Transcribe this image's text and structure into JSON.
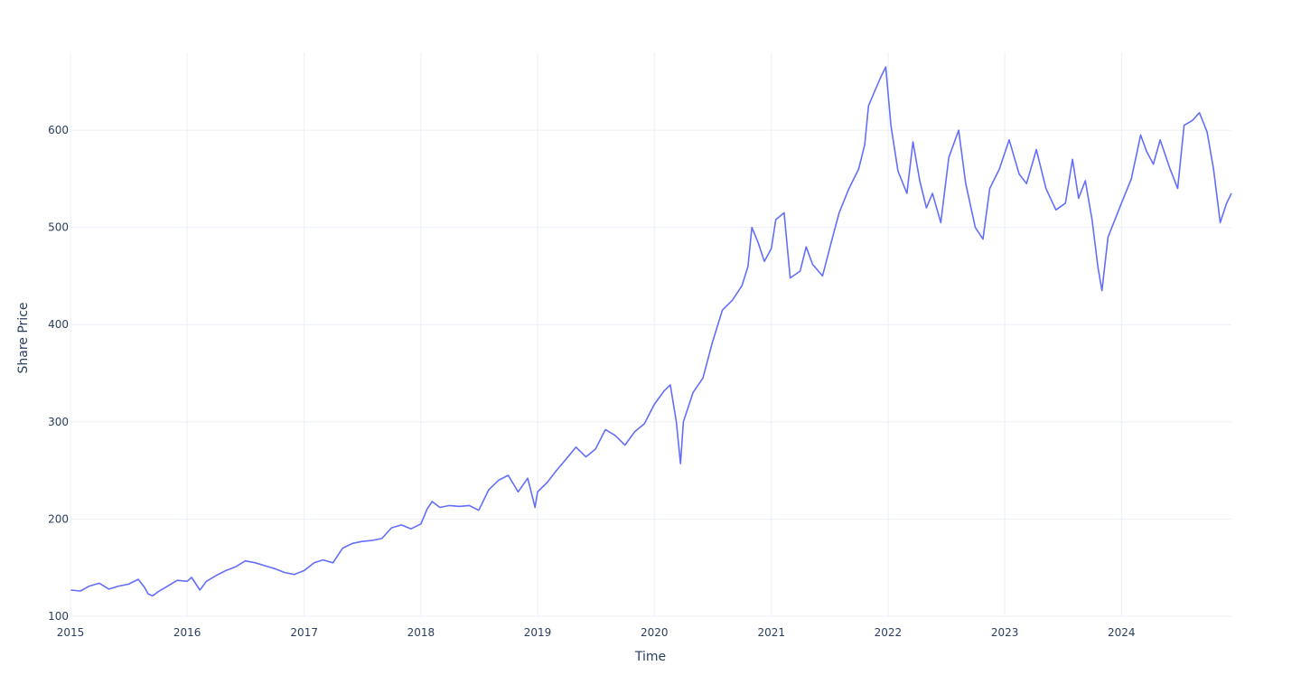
{
  "chart_data": {
    "type": "line",
    "xlabel": "Time",
    "ylabel": "Share Price",
    "xlim": [
      "2015-01-01",
      "2024-12-10"
    ],
    "ylim": [
      100,
      680
    ],
    "x_ticks": [
      "2015",
      "2016",
      "2017",
      "2018",
      "2019",
      "2020",
      "2021",
      "2022",
      "2023",
      "2024"
    ],
    "y_ticks": [
      100,
      200,
      300,
      400,
      500,
      600
    ],
    "grid": true,
    "legend": "none",
    "series": [
      {
        "color": "#636efa",
        "points": [
          [
            "2015-01-02",
            127
          ],
          [
            "2015-02-01",
            126
          ],
          [
            "2015-03-01",
            131
          ],
          [
            "2015-04-01",
            134
          ],
          [
            "2015-05-01",
            128
          ],
          [
            "2015-06-01",
            131
          ],
          [
            "2015-07-01",
            133
          ],
          [
            "2015-08-01",
            138
          ],
          [
            "2015-08-20",
            130
          ],
          [
            "2015-09-01",
            123
          ],
          [
            "2015-09-15",
            121
          ],
          [
            "2015-10-01",
            125
          ],
          [
            "2015-11-01",
            131
          ],
          [
            "2015-12-01",
            137
          ],
          [
            "2016-01-01",
            136
          ],
          [
            "2016-01-15",
            140
          ],
          [
            "2016-02-10",
            127
          ],
          [
            "2016-03-01",
            136
          ],
          [
            "2016-04-01",
            142
          ],
          [
            "2016-05-01",
            147
          ],
          [
            "2016-06-01",
            151
          ],
          [
            "2016-07-01",
            157
          ],
          [
            "2016-08-01",
            155
          ],
          [
            "2016-09-01",
            152
          ],
          [
            "2016-10-01",
            149
          ],
          [
            "2016-11-01",
            145
          ],
          [
            "2016-12-01",
            143
          ],
          [
            "2017-01-01",
            147
          ],
          [
            "2017-02-01",
            155
          ],
          [
            "2017-03-01",
            158
          ],
          [
            "2017-04-01",
            155
          ],
          [
            "2017-05-01",
            170
          ],
          [
            "2017-06-01",
            175
          ],
          [
            "2017-07-01",
            177
          ],
          [
            "2017-08-01",
            178
          ],
          [
            "2017-09-01",
            180
          ],
          [
            "2017-10-01",
            191
          ],
          [
            "2017-11-01",
            194
          ],
          [
            "2017-12-01",
            190
          ],
          [
            "2018-01-01",
            195
          ],
          [
            "2018-01-20",
            210
          ],
          [
            "2018-02-05",
            218
          ],
          [
            "2018-03-01",
            212
          ],
          [
            "2018-04-01",
            214
          ],
          [
            "2018-05-01",
            213
          ],
          [
            "2018-06-01",
            214
          ],
          [
            "2018-07-01",
            209
          ],
          [
            "2018-08-01",
            230
          ],
          [
            "2018-09-01",
            240
          ],
          [
            "2018-10-01",
            245
          ],
          [
            "2018-11-01",
            228
          ],
          [
            "2018-12-01",
            242
          ],
          [
            "2018-12-24",
            212
          ],
          [
            "2019-01-01",
            228
          ],
          [
            "2019-02-01",
            238
          ],
          [
            "2019-03-01",
            250
          ],
          [
            "2019-04-01",
            262
          ],
          [
            "2019-05-01",
            274
          ],
          [
            "2019-06-01",
            264
          ],
          [
            "2019-07-01",
            272
          ],
          [
            "2019-08-01",
            292
          ],
          [
            "2019-09-01",
            286
          ],
          [
            "2019-10-01",
            276
          ],
          [
            "2019-11-01",
            290
          ],
          [
            "2019-12-01",
            298
          ],
          [
            "2020-01-01",
            318
          ],
          [
            "2020-02-01",
            332
          ],
          [
            "2020-02-20",
            338
          ],
          [
            "2020-03-10",
            300
          ],
          [
            "2020-03-23",
            257
          ],
          [
            "2020-04-01",
            300
          ],
          [
            "2020-05-01",
            330
          ],
          [
            "2020-06-01",
            345
          ],
          [
            "2020-07-01",
            382
          ],
          [
            "2020-08-01",
            415
          ],
          [
            "2020-09-01",
            425
          ],
          [
            "2020-10-01",
            440
          ],
          [
            "2020-10-20",
            460
          ],
          [
            "2020-11-01",
            500
          ],
          [
            "2020-11-20",
            485
          ],
          [
            "2020-12-10",
            465
          ],
          [
            "2021-01-01",
            478
          ],
          [
            "2021-01-15",
            508
          ],
          [
            "2021-02-10",
            515
          ],
          [
            "2021-03-01",
            448
          ],
          [
            "2021-04-01",
            455
          ],
          [
            "2021-04-20",
            480
          ],
          [
            "2021-05-10",
            462
          ],
          [
            "2021-06-10",
            450
          ],
          [
            "2021-07-10",
            488
          ],
          [
            "2021-08-01",
            515
          ],
          [
            "2021-09-01",
            540
          ],
          [
            "2021-10-01",
            560
          ],
          [
            "2021-10-20",
            585
          ],
          [
            "2021-11-01",
            625
          ],
          [
            "2021-11-20",
            640
          ],
          [
            "2021-12-10",
            655
          ],
          [
            "2021-12-25",
            665
          ],
          [
            "2022-01-10",
            605
          ],
          [
            "2022-02-01",
            558
          ],
          [
            "2022-03-01",
            535
          ],
          [
            "2022-03-20",
            588
          ],
          [
            "2022-04-10",
            548
          ],
          [
            "2022-05-01",
            520
          ],
          [
            "2022-05-20",
            535
          ],
          [
            "2022-06-15",
            505
          ],
          [
            "2022-07-10",
            572
          ],
          [
            "2022-08-10",
            600
          ],
          [
            "2022-09-01",
            545
          ],
          [
            "2022-10-01",
            500
          ],
          [
            "2022-10-25",
            488
          ],
          [
            "2022-11-15",
            540
          ],
          [
            "2022-12-15",
            560
          ],
          [
            "2023-01-15",
            590
          ],
          [
            "2023-02-15",
            555
          ],
          [
            "2023-03-10",
            545
          ],
          [
            "2023-04-10",
            580
          ],
          [
            "2023-05-10",
            540
          ],
          [
            "2023-06-10",
            518
          ],
          [
            "2023-07-10",
            525
          ],
          [
            "2023-08-01",
            570
          ],
          [
            "2023-08-20",
            530
          ],
          [
            "2023-09-10",
            548
          ],
          [
            "2023-10-01",
            508
          ],
          [
            "2023-10-20",
            458
          ],
          [
            "2023-11-01",
            435
          ],
          [
            "2023-11-20",
            490
          ],
          [
            "2024-01-01",
            525
          ],
          [
            "2024-02-01",
            550
          ],
          [
            "2024-03-01",
            595
          ],
          [
            "2024-03-20",
            578
          ],
          [
            "2024-04-10",
            565
          ],
          [
            "2024-05-01",
            590
          ],
          [
            "2024-06-01",
            560
          ],
          [
            "2024-06-25",
            540
          ],
          [
            "2024-07-15",
            605
          ],
          [
            "2024-08-10",
            610
          ],
          [
            "2024-09-01",
            618
          ],
          [
            "2024-09-25",
            598
          ],
          [
            "2024-10-15",
            560
          ],
          [
            "2024-11-05",
            505
          ],
          [
            "2024-11-25",
            525
          ],
          [
            "2024-12-10",
            535
          ]
        ]
      }
    ]
  }
}
